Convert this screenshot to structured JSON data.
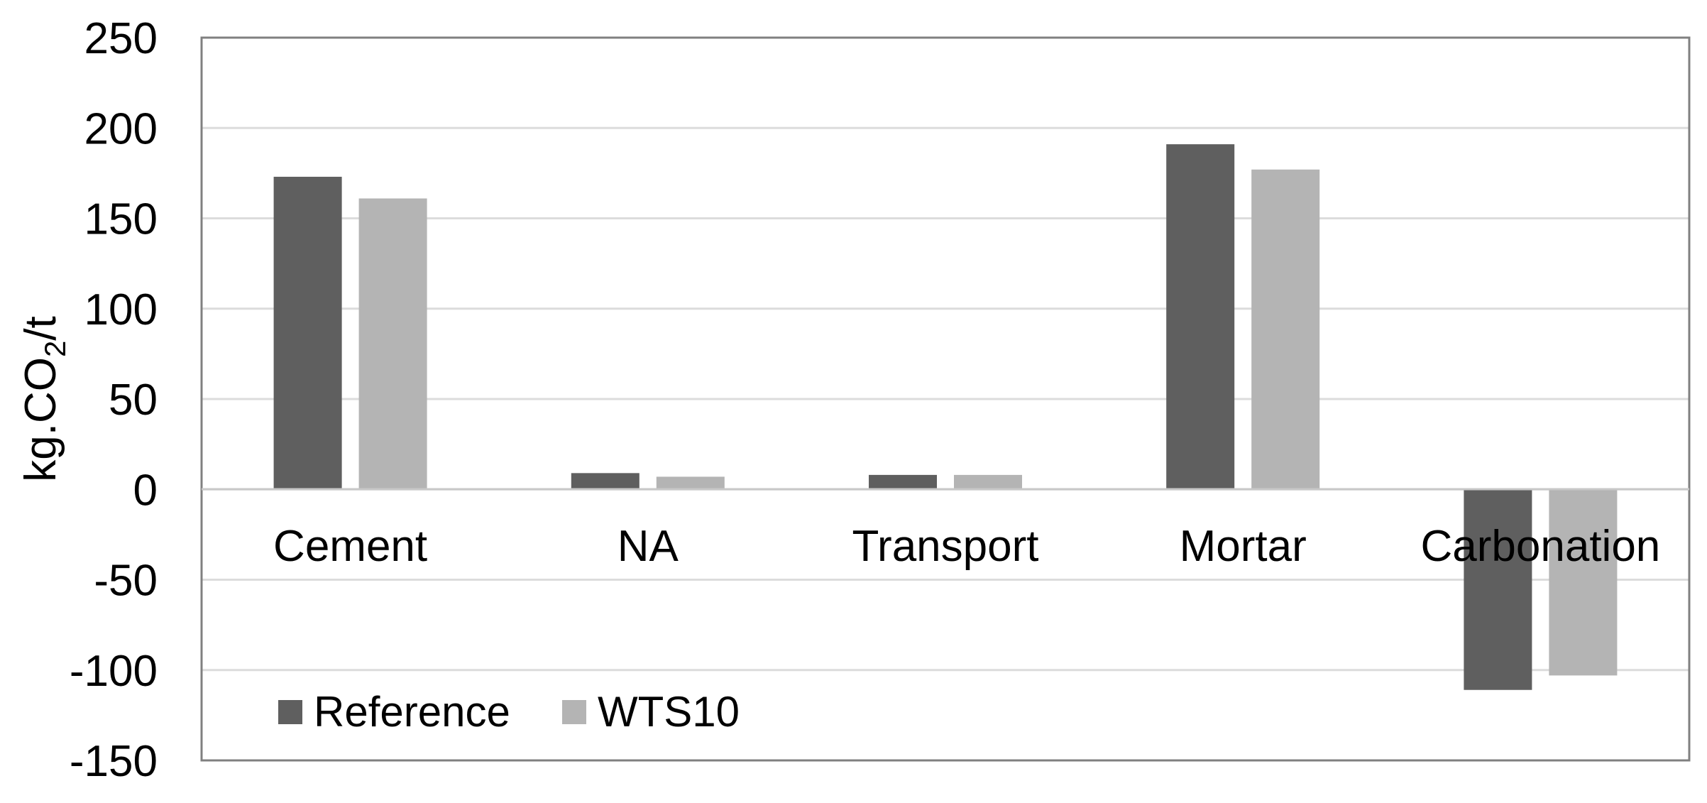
{
  "chart_data": {
    "type": "bar",
    "categories": [
      "Cement",
      "NA",
      "Transport",
      "Mortar",
      "Carbonation"
    ],
    "series": [
      {
        "name": "Reference",
        "color": "#5f5f5f",
        "values": [
          173,
          9,
          8,
          191,
          -111
        ]
      },
      {
        "name": "WTS10",
        "color": "#b4b4b4",
        "values": [
          161,
          7,
          8,
          177,
          -103
        ]
      }
    ],
    "ylabel": {
      "main": "kg.CO",
      "subscript": "2",
      "suffix": "/t"
    },
    "ylim": [
      -150,
      250
    ],
    "yticks": [
      250,
      200,
      150,
      100,
      50,
      0,
      -50,
      -100,
      -150
    ],
    "grid": true,
    "legend_position": "bottom-left"
  }
}
